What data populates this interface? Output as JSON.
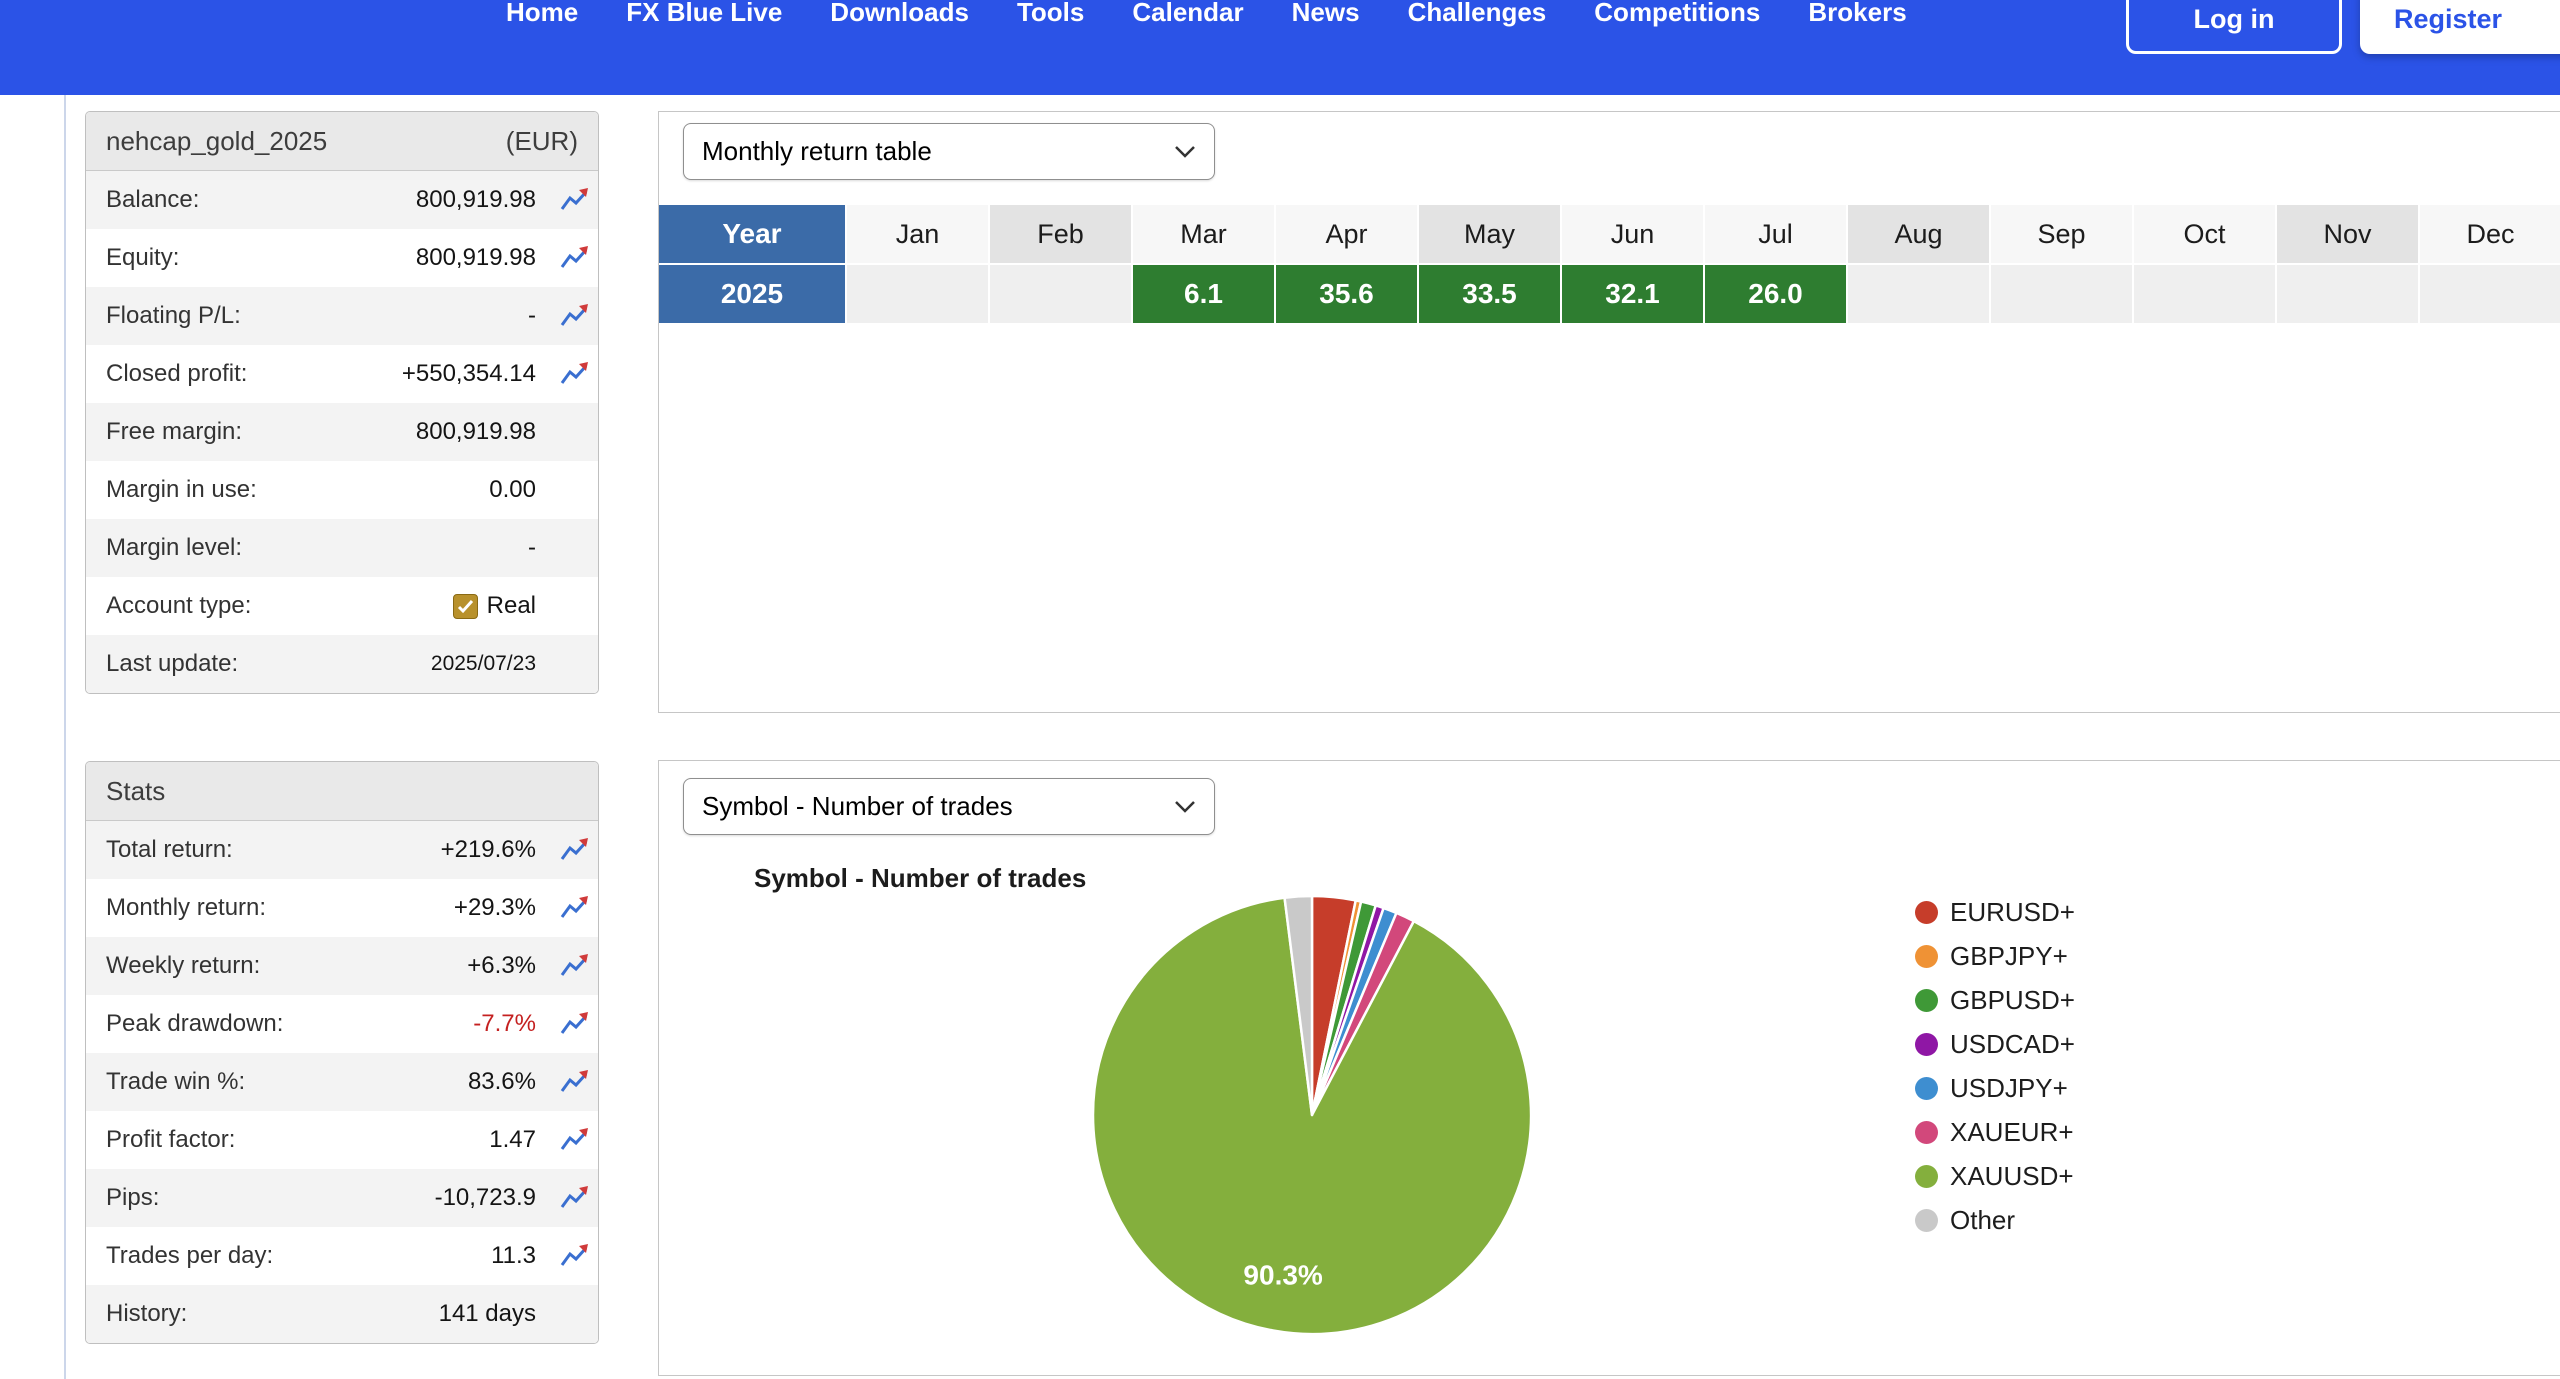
{
  "nav": {
    "items": [
      "Home",
      "FX Blue Live",
      "Downloads",
      "Tools",
      "Calendar",
      "News",
      "Challenges",
      "Competitions",
      "Brokers"
    ],
    "login_label": "Log in",
    "register_label": "Register"
  },
  "account": {
    "name": "nehcap_gold_2025",
    "currency": "(EUR)",
    "rows": [
      {
        "label": "Balance:",
        "value": "800,919.98",
        "icon": true
      },
      {
        "label": "Equity:",
        "value": "800,919.98",
        "icon": true
      },
      {
        "label": "Floating P/L:",
        "value": "-",
        "icon": true
      },
      {
        "label": "Closed profit:",
        "value": "+550,354.14",
        "icon": true
      },
      {
        "label": "Free margin:",
        "value": "800,919.98",
        "icon": false
      },
      {
        "label": "Margin in use:",
        "value": "0.00",
        "icon": false
      },
      {
        "label": "Margin level:",
        "value": "-",
        "icon": false
      },
      {
        "label": "Account type:",
        "value": "Real",
        "icon": false,
        "checkbox": true
      },
      {
        "label": "Last update:",
        "value": "2025/07/23",
        "icon": false,
        "small": true
      }
    ]
  },
  "stats": {
    "title": "Stats",
    "rows": [
      {
        "label": "Total return:",
        "value": "+219.6%",
        "icon": true
      },
      {
        "label": "Monthly return:",
        "value": "+29.3%",
        "icon": true
      },
      {
        "label": "Weekly return:",
        "value": "+6.3%",
        "icon": true
      },
      {
        "label": "Peak drawdown:",
        "value": "-7.7%",
        "icon": true,
        "negative": true
      },
      {
        "label": "Trade win %:",
        "value": "83.6%",
        "icon": true
      },
      {
        "label": "Profit factor:",
        "value": "1.47",
        "icon": true
      },
      {
        "label": "Pips:",
        "value": "-10,723.9",
        "icon": true
      },
      {
        "label": "Trades per day:",
        "value": "11.3",
        "icon": true
      },
      {
        "label": "History:",
        "value": "141 days",
        "icon": false
      }
    ]
  },
  "monthly_panel": {
    "dropdown_value": "Monthly return table"
  },
  "symbol_panel": {
    "dropdown_value": "Symbol - Number of trades",
    "chart_title": "Symbol - Number of trades"
  },
  "chart_data": [
    {
      "type": "table",
      "title": "Monthly return table",
      "value_unit": "%",
      "columns": [
        "Year",
        "Jan",
        "Feb",
        "Mar",
        "Apr",
        "May",
        "Jun",
        "Jul",
        "Aug",
        "Sep",
        "Oct",
        "Nov",
        "Dec"
      ],
      "rows": [
        {
          "year": "2025",
          "values": {
            "Mar": "6.1",
            "Apr": "35.6",
            "May": "33.5",
            "Jun": "32.1",
            "Jul": "26.0"
          }
        }
      ]
    },
    {
      "type": "pie",
      "title": "Symbol - Number of trades",
      "labels": [
        "EURUSD+",
        "GBPJPY+",
        "GBPUSD+",
        "USDCAD+",
        "USDJPY+",
        "XAUEUR+",
        "XAUUSD+",
        "Other"
      ],
      "values": [
        3.2,
        0.4,
        1.1,
        0.6,
        1.0,
        1.4,
        90.3,
        2.0
      ],
      "colors": [
        "#c63d2a",
        "#ef9235",
        "#3f9937",
        "#8f17a5",
        "#3e8ed0",
        "#d2487b",
        "#84af3d",
        "#c9c9c9"
      ],
      "shown_label": "90.3%",
      "legend_position": "right"
    }
  ]
}
